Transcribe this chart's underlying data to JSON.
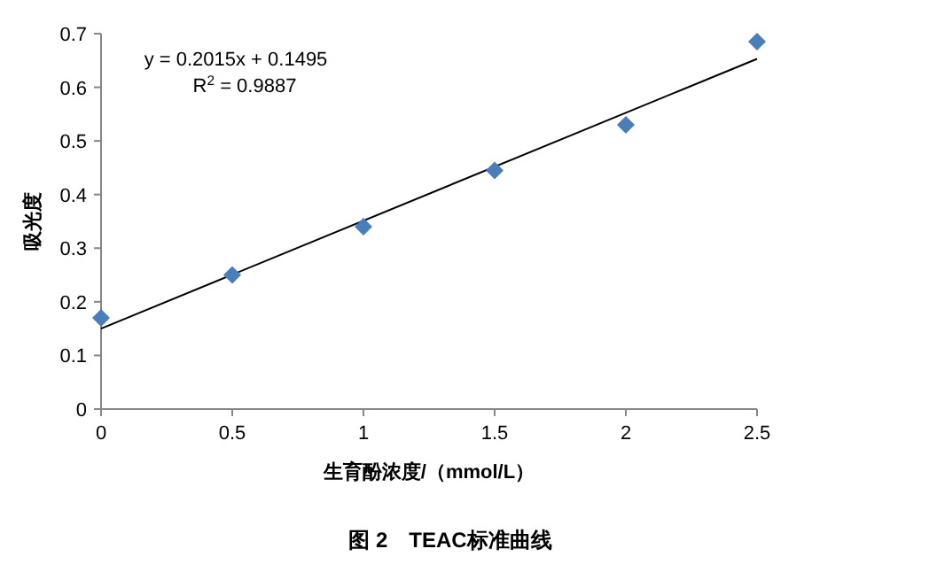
{
  "chart_data": {
    "type": "scatter",
    "title": "图 2　TEAC标准曲线",
    "xlabel": "生育酚浓度/（mmol/L）",
    "ylabel": "吸光度",
    "annotations": [
      "y = 0.2015x + 0.1495",
      "R$^{2}$ = 0.9887"
    ],
    "xlim": [
      0,
      2.5
    ],
    "xticks": [
      0,
      0.5,
      1,
      1.5,
      2,
      2.5
    ],
    "ylim": [
      0,
      0.7
    ],
    "yticks": [
      0,
      0.1,
      0.2,
      0.3,
      0.4,
      0.5,
      0.6,
      0.7
    ],
    "grid": false,
    "marker": "diamond",
    "series": [
      {
        "color": "#4a7ebb",
        "x": [
          0,
          0.5,
          1,
          1.5,
          2,
          2.5
        ],
        "values": [
          0.17,
          0.25,
          0.34,
          0.445,
          0.53,
          0.685
        ]
      },
      {
        "type": "line",
        "color": "#000000",
        "marker": "none",
        "line_style": "solid",
        "x": [
          0,
          2.5
        ],
        "values": [
          0.15,
          0.653
        ]
      }
    ]
  }
}
